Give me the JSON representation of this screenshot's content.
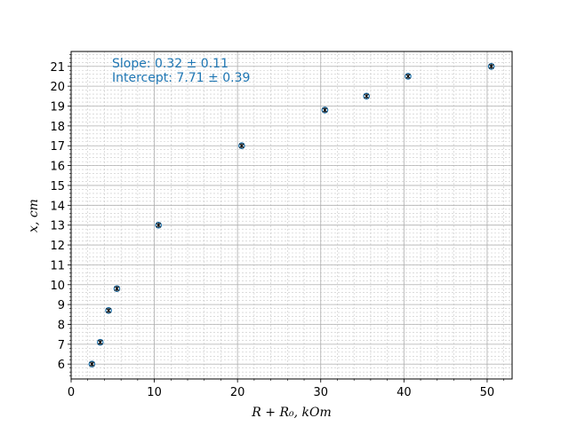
{
  "chart_data": {
    "type": "scatter",
    "xlabel": "R + R₀, kOm",
    "ylabel": "x, cm",
    "xlim": [
      0,
      53
    ],
    "ylim": [
      5.25,
      21.75
    ],
    "x_ticks": [
      0,
      10,
      20,
      30,
      40,
      50
    ],
    "y_ticks": [
      6,
      7,
      8,
      9,
      10,
      11,
      12,
      13,
      14,
      15,
      16,
      17,
      18,
      19,
      20,
      21
    ],
    "grid": true,
    "minor_grid": true,
    "points": [
      {
        "x": 2.5,
        "y": 6.0
      },
      {
        "x": 3.5,
        "y": 7.1
      },
      {
        "x": 4.5,
        "y": 8.7
      },
      {
        "x": 5.5,
        "y": 9.8
      },
      {
        "x": 10.5,
        "y": 13.0
      },
      {
        "x": 20.5,
        "y": 17.0
      },
      {
        "x": 30.5,
        "y": 18.8
      },
      {
        "x": 35.5,
        "y": 19.5
      },
      {
        "x": 40.5,
        "y": 20.5
      },
      {
        "x": 50.5,
        "y": 21.0
      }
    ],
    "annotations": [
      "Slope: 0.32 ± 0.11",
      "Intercept: 7.71 ± 0.39"
    ],
    "colors": {
      "marker_edge": "#1f77b4",
      "marker_cross": "#000000",
      "annotation": "#1f77b4"
    }
  }
}
